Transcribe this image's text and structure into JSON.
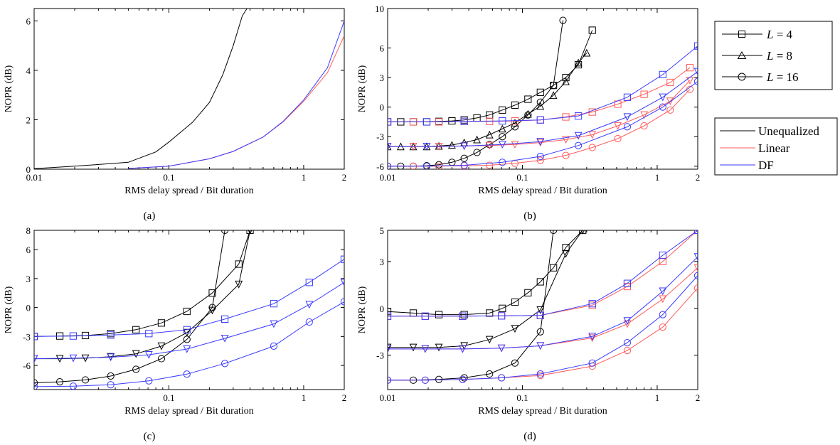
{
  "colors": {
    "unequalized": "#000000",
    "linear": "#ff5a5a",
    "df": "#3a3aff"
  },
  "legend_L": {
    "items": [
      {
        "marker": "square",
        "var": "L",
        "eq": " = 4"
      },
      {
        "marker": "triangle",
        "var": "L",
        "eq": " = 8"
      },
      {
        "marker": "circle",
        "var": "L",
        "eq": " = 16"
      }
    ]
  },
  "legend_eq": {
    "items": [
      {
        "label": "Unequalized",
        "color": "#000000"
      },
      {
        "label": "Linear",
        "color": "#ff5a5a"
      },
      {
        "label": "DF",
        "color": "#3a3aff"
      }
    ]
  },
  "chart_data": [
    {
      "id": "a",
      "type": "line",
      "caption": "(a)",
      "xlabel": "RMS delay spread / Bit duration",
      "ylabel": "NOPR (dB)",
      "xscale": "log",
      "xlim": [
        0.01,
        2
      ],
      "ylim": [
        0,
        6.5
      ],
      "xticks": [
        0.01,
        0.1,
        1,
        2
      ],
      "xticklabels": [
        "0.01",
        "0.1",
        "1",
        "2"
      ],
      "yticks": [
        0,
        2,
        4,
        6
      ],
      "yticklabels": [
        "0",
        "2",
        "4",
        "6"
      ],
      "series": [
        {
          "color": "unequalized",
          "marker": "none",
          "x": [
            0.01,
            0.02,
            0.05,
            0.08,
            0.1,
            0.15,
            0.2,
            0.25,
            0.3,
            0.35,
            0.38
          ],
          "y": [
            0.02,
            0.12,
            0.28,
            0.7,
            1.1,
            1.9,
            2.7,
            3.8,
            5.0,
            6.2,
            6.5
          ]
        },
        {
          "color": "linear",
          "marker": "none",
          "x": [
            0.05,
            0.1,
            0.2,
            0.3,
            0.5,
            0.7,
            1.0,
            1.5,
            2.0
          ],
          "y": [
            0.03,
            0.12,
            0.42,
            0.72,
            1.3,
            1.9,
            2.75,
            3.9,
            5.4
          ]
        },
        {
          "color": "df",
          "marker": "none",
          "x": [
            0.05,
            0.1,
            0.2,
            0.3,
            0.5,
            0.7,
            1.0,
            1.5,
            2.0
          ],
          "y": [
            0.03,
            0.12,
            0.42,
            0.72,
            1.3,
            1.92,
            2.8,
            4.1,
            6.0
          ]
        }
      ]
    },
    {
      "id": "b",
      "type": "line",
      "caption": "(b)",
      "xlabel": "RMS delay spread / Bit duration",
      "ylabel": "NOPR (dB)",
      "xscale": "log",
      "xlim": [
        0.01,
        2
      ],
      "ylim": [
        -6.3,
        10
      ],
      "xticks": [
        0.01,
        0.1,
        1,
        2
      ],
      "xticklabels": [
        "0.01",
        "0.1",
        "1",
        "2"
      ],
      "yticks": [
        -6,
        -3,
        0,
        3,
        6,
        10
      ],
      "yticklabels": [
        "-6",
        "-3",
        "0",
        "3",
        "6",
        "10"
      ],
      "series": [
        {
          "color": "unequalized",
          "marker": "square",
          "x": [
            0.01,
            0.0125,
            0.0155,
            0.0195,
            0.024,
            0.03,
            0.037,
            0.046,
            0.057,
            0.071,
            0.088,
            0.11,
            0.136,
            0.17,
            0.21,
            0.26,
            0.33
          ],
          "y": [
            -1.5,
            -1.5,
            -1.5,
            -1.5,
            -1.45,
            -1.4,
            -1.3,
            -1.1,
            -0.8,
            -0.3,
            0.2,
            0.8,
            1.5,
            2.2,
            3.0,
            4.3,
            7.8
          ]
        },
        {
          "color": "unequalized",
          "marker": "triangle",
          "x": [
            0.01,
            0.0125,
            0.0155,
            0.0195,
            0.024,
            0.03,
            0.037,
            0.046,
            0.057,
            0.071,
            0.088,
            0.11,
            0.136,
            0.17,
            0.21,
            0.26,
            0.3
          ],
          "y": [
            -4.0,
            -4.0,
            -4.0,
            -4.0,
            -3.95,
            -3.85,
            -3.6,
            -3.3,
            -2.8,
            -2.2,
            -1.6,
            -0.7,
            0.1,
            1.2,
            2.6,
            4.5,
            5.5
          ]
        },
        {
          "color": "unequalized",
          "marker": "circle",
          "x": [
            0.01,
            0.0125,
            0.0155,
            0.0195,
            0.024,
            0.03,
            0.037,
            0.046,
            0.057,
            0.071,
            0.088,
            0.11,
            0.136,
            0.17,
            0.2
          ],
          "y": [
            -6.0,
            -6.0,
            -6.0,
            -5.95,
            -5.85,
            -5.6,
            -5.2,
            -4.6,
            -3.8,
            -3.0,
            -2.0,
            -0.8,
            0.5,
            2.2,
            8.8
          ]
        },
        {
          "color": "linear",
          "marker": "square",
          "x": [
            0.01,
            0.0155,
            0.024,
            0.037,
            0.057,
            0.088,
            0.136,
            0.21,
            0.33,
            0.51,
            0.8,
            1.25,
            1.75
          ],
          "y": [
            -1.5,
            -1.5,
            -1.5,
            -1.45,
            -1.45,
            -1.4,
            -1.3,
            -1.0,
            -0.5,
            0.3,
            1.3,
            2.5,
            4.0
          ]
        },
        {
          "color": "df",
          "marker": "square",
          "x": [
            0.01,
            0.0195,
            0.037,
            0.071,
            0.136,
            0.26,
            0.6,
            1.1,
            2.0
          ],
          "y": [
            -1.5,
            -1.5,
            -1.45,
            -1.4,
            -1.3,
            -0.9,
            1.0,
            3.3,
            6.2
          ]
        },
        {
          "color": "linear",
          "marker": "triangle_down",
          "x": [
            0.01,
            0.0155,
            0.024,
            0.037,
            0.057,
            0.088,
            0.136,
            0.21,
            0.33,
            0.51,
            0.8,
            1.25,
            1.75
          ],
          "y": [
            -4.0,
            -4.0,
            -4.0,
            -3.95,
            -3.9,
            -3.8,
            -3.6,
            -3.3,
            -2.8,
            -1.9,
            -0.8,
            0.6,
            2.7
          ]
        },
        {
          "color": "df",
          "marker": "triangle_down",
          "x": [
            0.01,
            0.0195,
            0.037,
            0.071,
            0.136,
            0.26,
            0.6,
            1.1,
            2.0
          ],
          "y": [
            -4.0,
            -4.0,
            -3.95,
            -3.8,
            -3.5,
            -2.9,
            -1.0,
            1.0,
            3.6
          ]
        },
        {
          "color": "linear",
          "marker": "circle",
          "x": [
            0.01,
            0.0155,
            0.024,
            0.037,
            0.057,
            0.088,
            0.136,
            0.21,
            0.33,
            0.51,
            0.8,
            1.25,
            1.75
          ],
          "y": [
            -6.0,
            -6.0,
            -6.0,
            -5.95,
            -5.9,
            -5.7,
            -5.4,
            -4.9,
            -4.1,
            -3.2,
            -1.9,
            -0.3,
            1.8
          ]
        },
        {
          "color": "df",
          "marker": "circle",
          "x": [
            0.01,
            0.0195,
            0.037,
            0.071,
            0.136,
            0.26,
            0.6,
            1.1,
            2.0
          ],
          "y": [
            -6.0,
            -6.0,
            -5.9,
            -5.6,
            -5.0,
            -3.9,
            -2.0,
            0.0,
            2.6
          ]
        }
      ]
    },
    {
      "id": "c",
      "type": "line",
      "caption": "(c)",
      "xlabel": "RMS delay spread / Bit duration",
      "ylabel": "NOPR (dB)",
      "xscale": "log",
      "xlim": [
        0.01,
        2
      ],
      "ylim": [
        -8.5,
        8
      ],
      "xticks": [
        0.1,
        1,
        2
      ],
      "xticklabels": [
        "0.1",
        "1",
        "2"
      ],
      "yticks": [
        -6,
        -3,
        0,
        3,
        6,
        8
      ],
      "yticklabels": [
        "-6",
        "-3",
        "0",
        "3",
        "6",
        "8"
      ],
      "series": [
        {
          "color": "unequalized",
          "marker": "square",
          "x": [
            0.01,
            0.0155,
            0.024,
            0.037,
            0.057,
            0.088,
            0.136,
            0.21,
            0.33,
            0.4
          ],
          "y": [
            -3.0,
            -2.95,
            -2.9,
            -2.7,
            -2.3,
            -1.6,
            -0.4,
            1.5,
            4.5,
            8.0
          ]
        },
        {
          "color": "unequalized",
          "marker": "triangle_down",
          "x": [
            0.01,
            0.0155,
            0.024,
            0.037,
            0.057,
            0.088,
            0.136,
            0.21,
            0.33,
            0.4
          ],
          "y": [
            -5.3,
            -5.3,
            -5.25,
            -5.1,
            -4.8,
            -4.0,
            -2.6,
            -0.3,
            2.4,
            8.0
          ]
        },
        {
          "color": "unequalized",
          "marker": "circle",
          "x": [
            0.01,
            0.0155,
            0.024,
            0.037,
            0.057,
            0.088,
            0.136,
            0.21,
            0.26
          ],
          "y": [
            -7.8,
            -7.7,
            -7.5,
            -7.1,
            -6.4,
            -5.3,
            -3.3,
            0.0,
            8.0
          ]
        },
        {
          "color": "df",
          "marker": "square",
          "x": [
            0.01,
            0.0195,
            0.037,
            0.071,
            0.136,
            0.26,
            0.6,
            1.1,
            2.0
          ],
          "y": [
            -3.0,
            -2.95,
            -2.85,
            -2.7,
            -2.3,
            -1.2,
            0.4,
            2.6,
            5.0
          ]
        },
        {
          "color": "df",
          "marker": "triangle_down",
          "x": [
            0.01,
            0.0195,
            0.037,
            0.071,
            0.136,
            0.26,
            0.6,
            1.1,
            2.0
          ],
          "y": [
            -5.3,
            -5.25,
            -5.15,
            -4.9,
            -4.3,
            -3.2,
            -1.7,
            0.3,
            2.6
          ]
        },
        {
          "color": "df",
          "marker": "circle",
          "x": [
            0.01,
            0.0195,
            0.037,
            0.071,
            0.136,
            0.26,
            0.6,
            1.1,
            2.0
          ],
          "y": [
            -8.2,
            -8.15,
            -8.0,
            -7.6,
            -6.9,
            -5.8,
            -4.0,
            -1.5,
            0.6
          ]
        }
      ]
    },
    {
      "id": "d",
      "type": "line",
      "caption": "(d)",
      "xlabel": "RMS delay spread / Bit duration",
      "ylabel": "NOPR (dB)",
      "xscale": "log",
      "xlim": [
        0.01,
        2
      ],
      "ylim": [
        -5.2,
        5
      ],
      "xticks": [
        0.01,
        0.1,
        1,
        2
      ],
      "xticklabels": [
        "0.01",
        "0.1",
        "1",
        "2"
      ],
      "yticks": [
        -3,
        0,
        3,
        5
      ],
      "yticklabels": [
        "-3",
        "0",
        "3",
        "5"
      ],
      "series": [
        {
          "color": "unequalized",
          "marker": "square",
          "x": [
            0.01,
            0.0155,
            0.024,
            0.037,
            0.057,
            0.071,
            0.088,
            0.11,
            0.136,
            0.17,
            0.21,
            0.28
          ],
          "y": [
            -0.2,
            -0.3,
            -0.4,
            -0.4,
            -0.3,
            0.0,
            0.4,
            1.0,
            1.7,
            2.6,
            3.9,
            5.0
          ]
        },
        {
          "color": "unequalized",
          "marker": "triangle_down",
          "x": [
            0.01,
            0.0155,
            0.024,
            0.037,
            0.057,
            0.088,
            0.136,
            0.21,
            0.28
          ],
          "y": [
            -2.5,
            -2.5,
            -2.5,
            -2.4,
            -2.0,
            -1.3,
            -0.1,
            3.5,
            5.0
          ]
        },
        {
          "color": "unequalized",
          "marker": "circle",
          "x": [
            0.01,
            0.0155,
            0.024,
            0.037,
            0.057,
            0.088,
            0.136,
            0.17
          ],
          "y": [
            -4.6,
            -4.6,
            -4.55,
            -4.45,
            -4.2,
            -3.5,
            -1.5,
            5.0
          ]
        },
        {
          "color": "linear",
          "marker": "square",
          "x": [
            0.01,
            0.019,
            0.036,
            0.07,
            0.136,
            0.33,
            0.6,
            1.1,
            2.0
          ],
          "y": [
            -0.5,
            -0.5,
            -0.5,
            -0.48,
            -0.45,
            0.2,
            1.4,
            3.0,
            5.0
          ]
        },
        {
          "color": "df",
          "marker": "square",
          "x": [
            0.01,
            0.019,
            0.036,
            0.07,
            0.136,
            0.33,
            0.6,
            1.1,
            2.0
          ],
          "y": [
            -0.5,
            -0.5,
            -0.5,
            -0.48,
            -0.45,
            0.3,
            1.6,
            3.4,
            5.0
          ]
        },
        {
          "color": "linear",
          "marker": "triangle_down",
          "x": [
            0.01,
            0.019,
            0.036,
            0.07,
            0.136,
            0.33,
            0.6,
            1.1,
            2.0
          ],
          "y": [
            -2.6,
            -2.6,
            -2.6,
            -2.55,
            -2.4,
            -1.9,
            -1.0,
            0.6,
            2.6
          ]
        },
        {
          "color": "df",
          "marker": "triangle_down",
          "x": [
            0.01,
            0.019,
            0.036,
            0.07,
            0.136,
            0.33,
            0.6,
            1.1,
            2.0
          ],
          "y": [
            -2.6,
            -2.6,
            -2.6,
            -2.55,
            -2.4,
            -1.8,
            -0.8,
            1.1,
            3.3
          ]
        },
        {
          "color": "linear",
          "marker": "circle",
          "x": [
            0.01,
            0.019,
            0.036,
            0.07,
            0.136,
            0.33,
            0.6,
            1.1,
            2.0
          ],
          "y": [
            -4.6,
            -4.6,
            -4.55,
            -4.45,
            -4.3,
            -3.7,
            -2.7,
            -1.2,
            1.3
          ]
        },
        {
          "color": "df",
          "marker": "circle",
          "x": [
            0.01,
            0.019,
            0.036,
            0.07,
            0.136,
            0.33,
            0.6,
            1.1,
            2.0
          ],
          "y": [
            -4.6,
            -4.6,
            -4.55,
            -4.45,
            -4.2,
            -3.5,
            -2.2,
            -0.4,
            2.1
          ]
        }
      ]
    }
  ]
}
